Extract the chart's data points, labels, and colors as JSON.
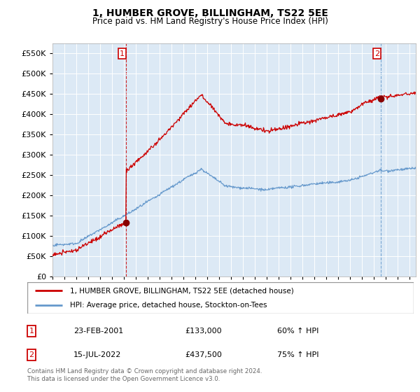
{
  "title": "1, HUMBER GROVE, BILLINGHAM, TS22 5EE",
  "subtitle": "Price paid vs. HM Land Registry's House Price Index (HPI)",
  "legend_line1": "1, HUMBER GROVE, BILLINGHAM, TS22 5EE (detached house)",
  "legend_line2": "HPI: Average price, detached house, Stockton-on-Tees",
  "table": [
    {
      "num": "1",
      "date": "23-FEB-2001",
      "price": "£133,000",
      "hpi": "60% ↑ HPI"
    },
    {
      "num": "2",
      "date": "15-JUL-2022",
      "price": "£437,500",
      "hpi": "75% ↑ HPI"
    }
  ],
  "footnote": "Contains HM Land Registry data © Crown copyright and database right 2024.\nThis data is licensed under the Open Government Licence v3.0.",
  "ylim": [
    0,
    575000
  ],
  "yticks": [
    0,
    50000,
    100000,
    150000,
    200000,
    250000,
    300000,
    350000,
    400000,
    450000,
    500000,
    550000
  ],
  "ytick_labels": [
    "£0",
    "£50K",
    "£100K",
    "£150K",
    "£200K",
    "£250K",
    "£300K",
    "£350K",
    "£400K",
    "£450K",
    "£500K",
    "£550K"
  ],
  "sale1_x": 2001.15,
  "sale1_y": 133000,
  "sale2_x": 2022.54,
  "sale2_y": 437500,
  "red_color": "#cc0000",
  "blue_color": "#6699cc",
  "sale1_vline_color": "#cc0000",
  "sale2_vline_color": "#6699cc",
  "bg_color": "#ffffff",
  "chart_bg_color": "#dce9f5",
  "grid_color": "#ffffff",
  "table_border_color": "#cc0000",
  "xlim_left": 1995.0,
  "xlim_right": 2025.5
}
